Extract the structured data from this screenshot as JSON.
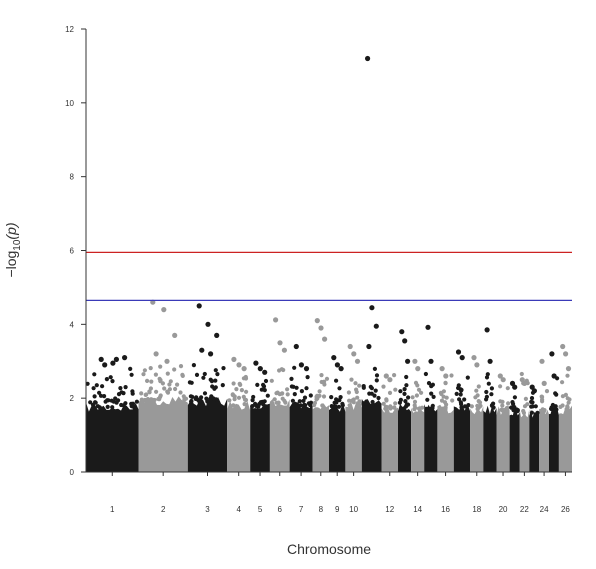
{
  "chart_data": {
    "type": "scatter",
    "subtype": "manhattan",
    "title": "",
    "xlabel": "Chromosome",
    "ylabel_main": "−log",
    "ylabel_sub": "10",
    "ylabel_tail": "(p)",
    "ylim": [
      0,
      12
    ],
    "yticks": [
      "0",
      "2",
      "4",
      "6",
      "8",
      "10",
      "12"
    ],
    "grid": false,
    "legend": "none",
    "colors": {
      "odd": "#1a1a1a",
      "even": "#999999",
      "genomewide_line": "#cc2222",
      "suggestive_line": "#3a3ab8"
    },
    "thresholds": {
      "genomewide": 5.95,
      "suggestive": 4.65
    },
    "xtick_labels": [
      "1",
      "2",
      "3",
      "4",
      "5",
      "6",
      "7",
      "8",
      "9",
      "10",
      "12",
      "14",
      "16",
      "18",
      "20",
      "22",
      "24",
      "26"
    ],
    "chromosomes": [
      {
        "chr": "1",
        "bulk": 1.75,
        "peaks": [
          3.05,
          2.95,
          3.1,
          2.9,
          3.05
        ]
      },
      {
        "chr": "2",
        "bulk": 1.95,
        "peaks": [
          4.6,
          4.4,
          3.7,
          3.2,
          3.0
        ]
      },
      {
        "chr": "3",
        "bulk": 1.9,
        "peaks": [
          4.5,
          4.0,
          3.7,
          3.3,
          3.2
        ]
      },
      {
        "chr": "4",
        "bulk": 1.8,
        "peaks": [
          3.05,
          2.9,
          2.8
        ]
      },
      {
        "chr": "5",
        "bulk": 1.75,
        "peaks": [
          2.95,
          2.8,
          2.7
        ]
      },
      {
        "chr": "6",
        "bulk": 1.85,
        "peaks": [
          4.12,
          3.5,
          3.3
        ]
      },
      {
        "chr": "7",
        "bulk": 1.8,
        "peaks": [
          3.4,
          2.9,
          2.8
        ]
      },
      {
        "chr": "8",
        "bulk": 1.8,
        "peaks": [
          4.1,
          3.9,
          3.6
        ]
      },
      {
        "chr": "9",
        "bulk": 1.75,
        "peaks": [
          3.1,
          2.9,
          2.8
        ]
      },
      {
        "chr": "10",
        "bulk": 1.8,
        "peaks": [
          3.4,
          3.2,
          3.0
        ]
      },
      {
        "chr": "11",
        "bulk": 1.85,
        "peaks": [
          11.2,
          4.45,
          3.95,
          3.4
        ]
      },
      {
        "chr": "12",
        "bulk": 1.7,
        "peaks": [
          2.6,
          2.5
        ]
      },
      {
        "chr": "13",
        "bulk": 1.75,
        "peaks": [
          3.8,
          3.55,
          3.0
        ]
      },
      {
        "chr": "14",
        "bulk": 1.7,
        "peaks": [
          3.0,
          2.8
        ]
      },
      {
        "chr": "15",
        "bulk": 1.7,
        "peaks": [
          3.92,
          3.0
        ]
      },
      {
        "chr": "16",
        "bulk": 1.7,
        "peaks": [
          2.8,
          2.6
        ]
      },
      {
        "chr": "17",
        "bulk": 1.75,
        "peaks": [
          3.25,
          3.1
        ]
      },
      {
        "chr": "18",
        "bulk": 1.7,
        "peaks": [
          3.1,
          2.9
        ]
      },
      {
        "chr": "19",
        "bulk": 1.7,
        "peaks": [
          3.85,
          3.0
        ]
      },
      {
        "chr": "20",
        "bulk": 1.65,
        "peaks": [
          2.6,
          2.5
        ]
      },
      {
        "chr": "21",
        "bulk": 1.6,
        "peaks": [
          2.4,
          2.3
        ]
      },
      {
        "chr": "22",
        "bulk": 1.6,
        "peaks": [
          2.5,
          2.4
        ]
      },
      {
        "chr": "23",
        "bulk": 1.6,
        "peaks": [
          2.3,
          2.2
        ]
      },
      {
        "chr": "24",
        "bulk": 1.6,
        "peaks": [
          3.0,
          2.4
        ]
      },
      {
        "chr": "25",
        "bulk": 1.65,
        "peaks": [
          3.2,
          2.6
        ]
      },
      {
        "chr": "26",
        "bulk": 1.7,
        "peaks": [
          3.4,
          3.2,
          2.8
        ]
      }
    ]
  }
}
